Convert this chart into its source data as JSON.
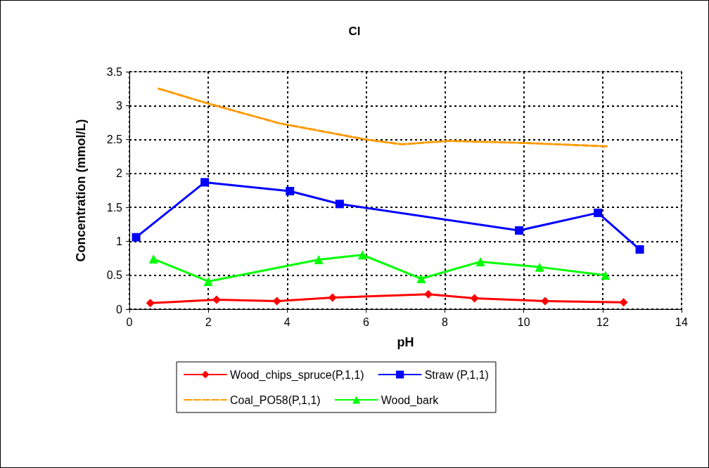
{
  "chart_data": {
    "type": "line",
    "title": "Cl",
    "xlabel": "pH",
    "ylabel": "Concentration (mmol/L)",
    "xlim": [
      0,
      14
    ],
    "xticks": [
      0,
      2,
      4,
      6,
      8,
      10,
      12,
      14
    ],
    "ylim": [
      0,
      3.5
    ],
    "yticks": [
      0,
      0.5,
      1,
      1.5,
      2,
      2.5,
      3,
      3.5
    ],
    "grid": true,
    "legend": "bottom",
    "series": [
      {
        "name": "Wood_chips_spruce(P,1,1)",
        "color": "#ff0000",
        "marker": "diamond",
        "line_style": "solid",
        "x": [
          0.53,
          2.21,
          3.74,
          5.15,
          7.58,
          8.75,
          10.54,
          12.53
        ],
        "values": [
          0.09,
          0.14,
          0.12,
          0.17,
          0.22,
          0.16,
          0.12,
          0.1
        ]
      },
      {
        "name": "Straw (P,1,1)",
        "color": "#0000ff",
        "marker": "square",
        "line_style": "solid",
        "x": [
          0.17,
          1.91,
          4.07,
          5.33,
          9.88,
          11.88,
          12.94
        ],
        "values": [
          1.06,
          1.87,
          1.74,
          1.55,
          1.16,
          1.42,
          0.88
        ]
      },
      {
        "name": "Coal_PO58(P,1,1)",
        "color": "#ff9900",
        "marker": "none",
        "line_style": "dashed",
        "x": [
          0.74,
          2.0,
          3.8,
          6.0,
          6.9,
          8.1,
          10.0,
          12.1
        ],
        "values": [
          3.25,
          3.03,
          2.74,
          2.5,
          2.43,
          2.48,
          2.45,
          2.4
        ]
      },
      {
        "name": "Wood_bark",
        "color": "#00ff00",
        "marker": "triangle",
        "line_style": "solid",
        "x": [
          0.61,
          2.0,
          4.8,
          5.91,
          7.4,
          8.9,
          10.4,
          12.07
        ],
        "values": [
          0.74,
          0.41,
          0.73,
          0.8,
          0.45,
          0.7,
          0.62,
          0.5
        ]
      }
    ]
  }
}
